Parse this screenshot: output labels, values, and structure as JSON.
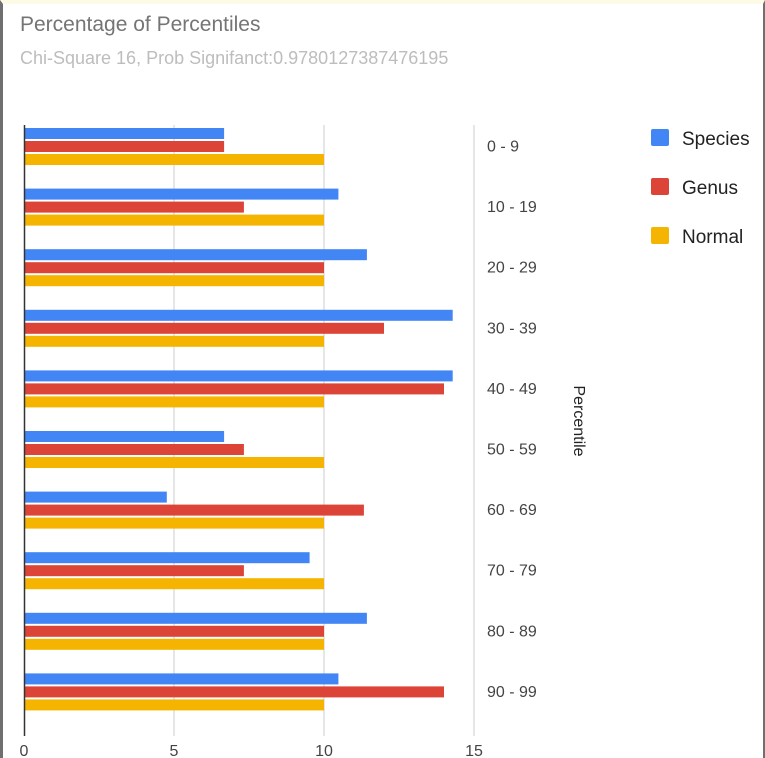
{
  "chart_data": {
    "type": "bar",
    "orientation": "horizontal",
    "title": "Percentage of Percentiles",
    "subtitle": "Chi-Square 16, Prob Signifanct:0.9780127387476195",
    "xlabel": "",
    "ylabel": "Percentile",
    "xlim": [
      0,
      15
    ],
    "xticks": [
      0,
      5,
      10,
      15
    ],
    "grid": true,
    "legend_position": "right",
    "categories": [
      "0 - 9",
      "10 - 19",
      "20 - 29",
      "30 - 39",
      "40 - 49",
      "50 - 59",
      "60 - 69",
      "70 - 79",
      "80 - 89",
      "90 - 99"
    ],
    "series": [
      {
        "name": "Species",
        "color": "#4285f4",
        "values": [
          6.67,
          10.48,
          11.43,
          14.29,
          14.29,
          6.67,
          4.76,
          9.52,
          11.43,
          10.48
        ]
      },
      {
        "name": "Genus",
        "color": "#db4437",
        "values": [
          6.67,
          7.33,
          10.0,
          12.0,
          14.0,
          7.33,
          11.33,
          7.33,
          10.0,
          14.0
        ]
      },
      {
        "name": "Normal",
        "color": "#f4b400",
        "values": [
          10,
          10,
          10,
          10,
          10,
          10,
          10,
          10,
          10,
          10
        ]
      }
    ]
  }
}
